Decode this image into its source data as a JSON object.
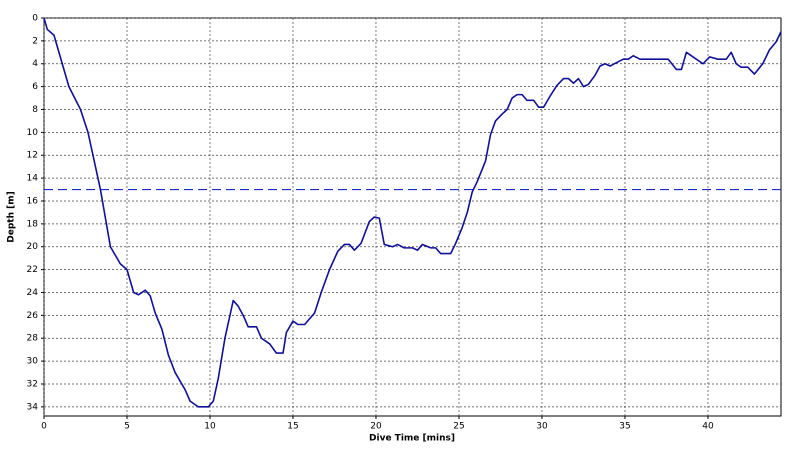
{
  "chart_data": {
    "type": "line",
    "x_label": "Dive Time [mins]",
    "y_label": "Depth [m]",
    "x": [
      0,
      0.2,
      0.6,
      1.1,
      1.5,
      2.2,
      2.65,
      2.95,
      3.4,
      4.0,
      4.6,
      5.0,
      5.4,
      5.7,
      6.1,
      6.4,
      6.7,
      7.1,
      7.5,
      7.9,
      8.5,
      8.8,
      9.3,
      9.9,
      10.2,
      10.5,
      10.9,
      11.4,
      11.7,
      12.0,
      12.3,
      12.8,
      13.1,
      13.6,
      14.0,
      14.4,
      14.6,
      15.0,
      15.3,
      15.7,
      16.3,
      16.7,
      17.2,
      17.7,
      18.1,
      18.4,
      18.7,
      19.1,
      19.6,
      19.9,
      20.2,
      20.5,
      21.0,
      21.3,
      21.7,
      22.2,
      22.5,
      22.8,
      23.3,
      23.6,
      23.9,
      24.5,
      24.8,
      25.2,
      25.5,
      25.8,
      26.1,
      26.6,
      26.9,
      27.2,
      27.6,
      27.9,
      28.2,
      28.5,
      28.8,
      29.1,
      29.5,
      29.8,
      30.1,
      30.5,
      30.9,
      31.3,
      31.6,
      31.9,
      32.2,
      32.5,
      32.8,
      33.2,
      33.5,
      33.8,
      34.1,
      34.5,
      34.9,
      35.2,
      35.5,
      35.9,
      37.6,
      38.1,
      38.4,
      38.7,
      39.2,
      39.7,
      40.1,
      40.6,
      41.1,
      41.4,
      41.7,
      42.0,
      42.4,
      42.8,
      43.3,
      43.7,
      44.1,
      44.4
    ],
    "values": [
      0,
      1.0,
      1.5,
      4,
      6,
      8,
      10,
      12,
      15,
      20,
      21.5,
      22,
      24,
      24.2,
      23.8,
      24.3,
      25.8,
      27.2,
      29.5,
      31,
      32.5,
      33.5,
      34,
      34,
      33.5,
      31.5,
      28,
      24.7,
      25.2,
      26,
      27,
      27,
      28,
      28.5,
      29.3,
      29.3,
      27.5,
      26.5,
      26.8,
      26.8,
      25.8,
      24,
      22,
      20.4,
      19.8,
      19.8,
      20.3,
      19.7,
      17.8,
      17.4,
      17.5,
      19.8,
      20,
      19.8,
      20.1,
      20.1,
      20.3,
      19.8,
      20.1,
      20.1,
      20.6,
      20.6,
      19.7,
      18.3,
      17,
      15.2,
      14.3,
      12.5,
      10.2,
      9,
      8.4,
      8,
      7,
      6.7,
      6.7,
      7.2,
      7.2,
      7.8,
      7.8,
      6.8,
      5.9,
      5.3,
      5.3,
      5.7,
      5.3,
      6,
      5.8,
      5,
      4.2,
      4,
      4.2,
      3.9,
      3.6,
      3.6,
      3.3,
      3.6,
      3.6,
      4.5,
      4.5,
      3,
      3.5,
      4,
      3.4,
      3.6,
      3.6,
      3,
      4,
      4.3,
      4.3,
      4.9,
      4,
      2.8,
      2.1,
      1.2
    ],
    "color": "#10109a",
    "reference_line": 15,
    "reference_color": "#1a2ecc",
    "xlim": [
      0,
      44.4
    ],
    "xticks": [
      0,
      5,
      10,
      15,
      20,
      25,
      30,
      35,
      40
    ],
    "ylim": [
      0,
      34.8
    ],
    "yticks": [
      0,
      2,
      4,
      6,
      8,
      10,
      12,
      14,
      16,
      18,
      20,
      22,
      24,
      26,
      28,
      30,
      32,
      34
    ],
    "y_inverted": true,
    "grid": true
  }
}
